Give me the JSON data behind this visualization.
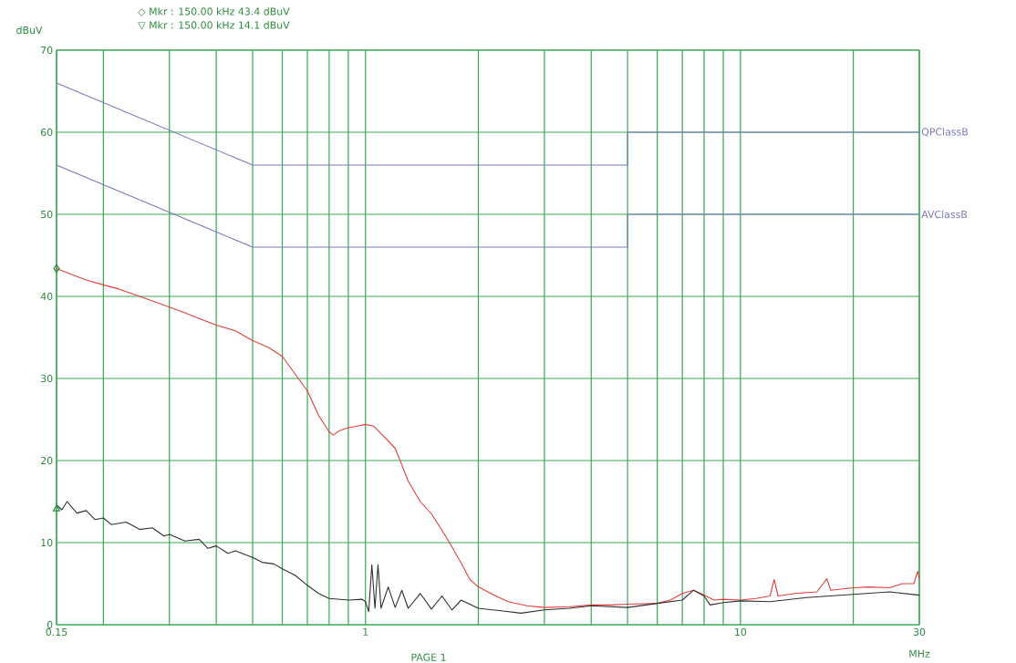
{
  "chart_data": {
    "type": "line",
    "ylabel": "dBuV",
    "xlabel": "MHz",
    "annotations": [
      "◇ Mkr : 150.00 kHz 43.4 dBuV",
      "▽ Mkr : 150.00 kHz 14.1 dBuV",
      "PAGE 1"
    ],
    "log": "x",
    "grid": true,
    "line_style": "solid",
    "xlim": [
      0.15,
      30
    ],
    "ylim": [
      0,
      70
    ],
    "xticks": [
      0.15,
      {
        "value": 0.2,
        "label": null
      },
      {
        "value": 0.3,
        "label": null
      },
      {
        "value": 0.4,
        "label": null
      },
      {
        "value": 0.5,
        "label": null
      },
      {
        "value": 0.6,
        "label": null
      },
      {
        "value": 0.7,
        "label": null
      },
      {
        "value": 0.8,
        "label": null
      },
      {
        "value": 0.9,
        "label": null
      },
      1,
      {
        "value": 2,
        "label": null
      },
      {
        "value": 3,
        "label": null
      },
      {
        "value": 4,
        "label": null
      },
      {
        "value": 5,
        "label": null
      },
      {
        "value": 6,
        "label": null
      },
      {
        "value": 7,
        "label": null
      },
      {
        "value": 8,
        "label": null
      },
      {
        "value": 9,
        "label": null
      },
      10,
      {
        "value": 20,
        "label": null
      },
      30
    ],
    "yticks": [
      0,
      10,
      20,
      30,
      40,
      50,
      60,
      70
    ],
    "series": [
      {
        "name": "QPClassB",
        "color": "#7a7ab8",
        "x": [
          0.15,
          0.5,
          5,
          5,
          30
        ],
        "values": [
          66,
          56,
          56,
          60,
          60
        ]
      },
      {
        "name": "AVClassB",
        "color": "#7a7ab8",
        "x": [
          0.15,
          0.5,
          5,
          5,
          30
        ],
        "values": [
          56,
          46,
          46,
          50,
          50
        ]
      },
      {
        "color": "#e0403a",
        "x": [
          0.15,
          0.16,
          0.18,
          0.2,
          0.22,
          0.25,
          0.28,
          0.3,
          0.33,
          0.36,
          0.4,
          0.45,
          0.5,
          0.55,
          0.6,
          0.65,
          0.7,
          0.75,
          0.8,
          0.82,
          0.85,
          0.9,
          0.95,
          1.0,
          1.05,
          1.1,
          1.2,
          1.3,
          1.4,
          1.5,
          1.6,
          1.7,
          1.8,
          1.9,
          2.0,
          2.2,
          2.4,
          2.7,
          3.0,
          3.5,
          4.0,
          4.5,
          5.0,
          6.0,
          6.5,
          7.0,
          7.5,
          8.0,
          8.5,
          9.0,
          10,
          11,
          12,
          12.3,
          12.6,
          14,
          16,
          17,
          17.4,
          20,
          22,
          25,
          27,
          29,
          29.7,
          30
        ],
        "values": [
          43.4,
          42.9,
          42.0,
          41.4,
          40.9,
          40.0,
          39.2,
          38.7,
          38.0,
          37.3,
          36.5,
          35.8,
          34.6,
          33.8,
          32.7,
          30.5,
          28.5,
          25.5,
          23.5,
          23.1,
          23.6,
          24.0,
          24.2,
          24.4,
          24.2,
          23.3,
          21.5,
          17.5,
          15.0,
          13.5,
          11.5,
          9.5,
          7.5,
          5.5,
          4.6,
          3.6,
          2.8,
          2.3,
          2.1,
          2.2,
          2.4,
          2.4,
          2.5,
          2.6,
          3.0,
          3.8,
          4.2,
          3.6,
          3.0,
          3.1,
          3.0,
          3.2,
          3.5,
          5.5,
          3.5,
          3.8,
          4.0,
          5.6,
          4.2,
          4.5,
          4.6,
          4.5,
          5.0,
          5.0,
          6.5,
          5.5
        ]
      },
      {
        "color": "#303030",
        "x": [
          0.15,
          0.155,
          0.16,
          0.17,
          0.18,
          0.19,
          0.2,
          0.21,
          0.23,
          0.25,
          0.27,
          0.29,
          0.3,
          0.33,
          0.36,
          0.38,
          0.4,
          0.43,
          0.45,
          0.5,
          0.53,
          0.57,
          0.6,
          0.65,
          0.7,
          0.75,
          0.8,
          0.9,
          0.98,
          1.0,
          1.02,
          1.04,
          1.06,
          1.08,
          1.1,
          1.15,
          1.2,
          1.25,
          1.3,
          1.4,
          1.5,
          1.6,
          1.7,
          1.8,
          2.0,
          2.3,
          2.6,
          3.0,
          3.5,
          4.0,
          5.0,
          6.0,
          7.0,
          7.5,
          8.0,
          8.3,
          9.0,
          10,
          12,
          15,
          20,
          25,
          30
        ],
        "values": [
          14.6,
          14.0,
          15.0,
          13.6,
          13.9,
          12.8,
          13.0,
          12.2,
          12.5,
          11.6,
          11.8,
          10.8,
          11.0,
          10.2,
          10.4,
          9.3,
          9.6,
          8.7,
          9.0,
          8.2,
          7.6,
          7.4,
          6.8,
          6.0,
          4.8,
          3.8,
          3.2,
          3.0,
          3.1,
          2.8,
          1.6,
          7.3,
          2.0,
          7.3,
          2.0,
          4.6,
          2.1,
          4.2,
          2.0,
          3.8,
          1.9,
          3.5,
          1.8,
          3.0,
          2.0,
          1.7,
          1.4,
          1.8,
          2.0,
          2.3,
          2.1,
          2.6,
          3.0,
          4.2,
          3.5,
          2.4,
          2.7,
          2.9,
          2.8,
          3.3,
          3.7,
          4.0,
          3.6
        ]
      },
      {
        "type": "scatter",
        "marker": "diamond",
        "color": "#2e8b3e",
        "x": [
          0.15
        ],
        "values": [
          43.4
        ]
      },
      {
        "type": "scatter",
        "marker": "triangle",
        "color": "#2e8b3e",
        "x": [
          0.15
        ],
        "values": [
          14.1
        ]
      }
    ]
  }
}
